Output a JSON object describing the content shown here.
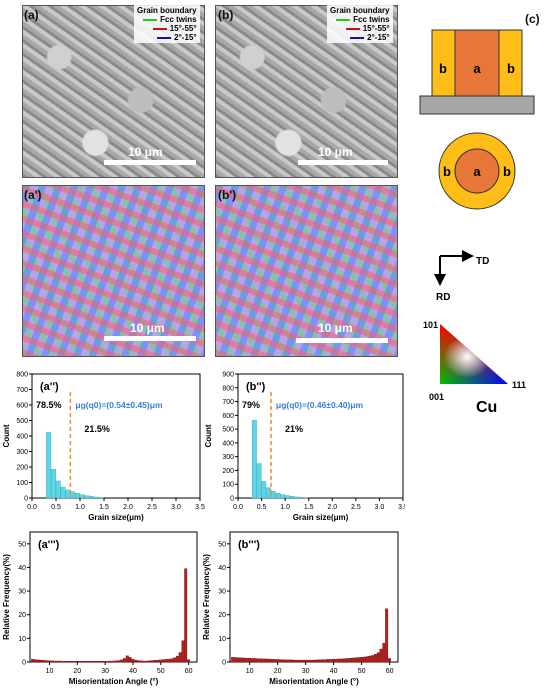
{
  "panels": {
    "a": "(a)",
    "b": "(b)",
    "c": "(c)",
    "a1": "(a')",
    "b1": "(b')",
    "a2": "(a'')",
    "b2": "(b'')",
    "a3": "(a''')",
    "b3": "(b''')"
  },
  "gb_legend": {
    "title": "Grain boundary",
    "items": [
      {
        "label": "Fcc twins",
        "color": "#22cc22"
      },
      {
        "label": "15°-55°",
        "color": "#d01010"
      },
      {
        "label": "2°-15°",
        "color": "#1010c0"
      }
    ]
  },
  "scale_label": "10 μm",
  "schematic": {
    "label_a": "a",
    "label_b": "b",
    "orange": "#e8763a",
    "yellow": "#ffbe17",
    "base": "#a6a6a6"
  },
  "axes_labels": {
    "td": "TD",
    "rd": "RD"
  },
  "ipf_key": {
    "top": "101",
    "left": "001",
    "right": "111",
    "material": "Cu"
  },
  "chart_data": [
    {
      "type": "bar",
      "id": "a2",
      "xlabel": "Grain size(μm)",
      "ylabel": "Count",
      "xlim": [
        0,
        3.5
      ],
      "ylim": [
        0,
        800
      ],
      "xticks": [
        "0.0",
        "0.5",
        "1.0",
        "1.5",
        "2.0",
        "2.5",
        "3.0",
        "3.5"
      ],
      "yticks": [
        "0",
        "100",
        "200",
        "300",
        "400",
        "500",
        "600",
        "700",
        "800"
      ],
      "bar_width": 0.1,
      "bar_color": "#5fd6e6",
      "x": [
        0.35,
        0.45,
        0.55,
        0.65,
        0.75,
        0.85,
        0.95,
        1.05,
        1.15,
        1.25,
        1.35,
        1.45
      ],
      "values": [
        425,
        185,
        110,
        70,
        52,
        40,
        30,
        22,
        15,
        10,
        6,
        3
      ],
      "cut_x": 0.8,
      "annotations": {
        "left_pct": "78.5%",
        "right_pct": "21.5%",
        "mean": "μg(q0)=(0.54±0.45)μm"
      }
    },
    {
      "type": "bar",
      "id": "b2",
      "xlabel": "Grain size(μm)",
      "ylabel": "Count",
      "xlim": [
        0,
        3.5
      ],
      "ylim": [
        0,
        900
      ],
      "xticks": [
        "0.0",
        "0.5",
        "1.0",
        "1.5",
        "2.0",
        "2.5",
        "3.0",
        "3.5"
      ],
      "yticks": [
        "0",
        "100",
        "200",
        "300",
        "400",
        "500",
        "600",
        "700",
        "800",
        "900"
      ],
      "bar_width": 0.1,
      "bar_color": "#5fd6e6",
      "x": [
        0.35,
        0.45,
        0.55,
        0.65,
        0.75,
        0.85,
        0.95,
        1.05,
        1.15,
        1.25,
        1.35,
        1.45
      ],
      "values": [
        565,
        250,
        120,
        75,
        50,
        35,
        25,
        18,
        12,
        8,
        5,
        3
      ],
      "cut_x": 0.7,
      "annotations": {
        "left_pct": "79%",
        "right_pct": "21%",
        "mean": "μg(q0)=(0.46±0.40)μm"
      }
    },
    {
      "type": "bar",
      "id": "a3",
      "xlabel": "Misorientation Angle (°)",
      "ylabel": "Relative Frequency(%)",
      "xlim": [
        3,
        63
      ],
      "ylim": [
        0,
        55
      ],
      "xticks": [
        "10",
        "20",
        "30",
        "40",
        "50",
        "60"
      ],
      "yticks": [
        "0",
        "10",
        "20",
        "30",
        "40",
        "50"
      ],
      "bar_width": 1,
      "bar_color": "#b22222",
      "x": [
        4,
        5,
        6,
        7,
        8,
        9,
        10,
        11,
        12,
        13,
        14,
        15,
        16,
        17,
        18,
        19,
        20,
        21,
        22,
        23,
        24,
        25,
        26,
        27,
        28,
        29,
        30,
        31,
        32,
        33,
        34,
        35,
        36,
        37,
        38,
        39,
        40,
        41,
        42,
        43,
        44,
        45,
        46,
        47,
        48,
        49,
        50,
        51,
        52,
        53,
        54,
        55,
        56,
        57,
        58,
        59,
        60
      ],
      "values": [
        1.2,
        1.0,
        0.9,
        0.8,
        0.7,
        0.6,
        0.5,
        0.5,
        0.4,
        0.4,
        0.4,
        0.3,
        0.3,
        0.3,
        0.3,
        0.3,
        0.3,
        0.3,
        0.3,
        0.3,
        0.3,
        0.3,
        0.3,
        0.3,
        0.3,
        0.3,
        0.3,
        0.3,
        0.4,
        0.4,
        0.5,
        0.6,
        0.9,
        1.5,
        2.6,
        2.0,
        1.2,
        0.8,
        0.6,
        0.5,
        0.4,
        0.4,
        0.5,
        0.6,
        0.7,
        0.8,
        0.9,
        1.0,
        1.1,
        1.2,
        1.4,
        1.8,
        2.5,
        4.0,
        9.0,
        39.5,
        1.0
      ]
    },
    {
      "type": "bar",
      "id": "b3",
      "xlabel": "Misorientation Angle (°)",
      "ylabel": "Relative Frequency(%)",
      "xlim": [
        3,
        63
      ],
      "ylim": [
        0,
        55
      ],
      "xticks": [
        "10",
        "20",
        "30",
        "40",
        "50",
        "60"
      ],
      "yticks": [
        "0",
        "10",
        "20",
        "30",
        "40",
        "50"
      ],
      "bar_width": 1,
      "bar_color": "#b22222",
      "x": [
        4,
        5,
        6,
        7,
        8,
        9,
        10,
        11,
        12,
        13,
        14,
        15,
        16,
        17,
        18,
        19,
        20,
        21,
        22,
        23,
        24,
        25,
        26,
        27,
        28,
        29,
        30,
        31,
        32,
        33,
        34,
        35,
        36,
        37,
        38,
        39,
        40,
        41,
        42,
        43,
        44,
        45,
        46,
        47,
        48,
        49,
        50,
        51,
        52,
        53,
        54,
        55,
        56,
        57,
        58,
        59,
        60
      ],
      "values": [
        2.0,
        1.9,
        1.8,
        1.8,
        1.7,
        1.6,
        1.6,
        1.5,
        1.5,
        1.4,
        1.4,
        1.3,
        1.3,
        1.2,
        1.2,
        1.1,
        1.1,
        1.0,
        1.0,
        0.9,
        0.9,
        0.9,
        0.8,
        0.8,
        0.8,
        0.8,
        0.8,
        0.8,
        0.8,
        0.8,
        0.9,
        0.9,
        1.0,
        1.0,
        1.1,
        1.1,
        1.2,
        1.2,
        1.3,
        1.3,
        1.4,
        1.5,
        1.6,
        1.7,
        1.8,
        1.9,
        2.0,
        2.1,
        2.3,
        2.5,
        2.8,
        3.3,
        4.0,
        5.5,
        8.0,
        22.5,
        1.5
      ]
    }
  ]
}
